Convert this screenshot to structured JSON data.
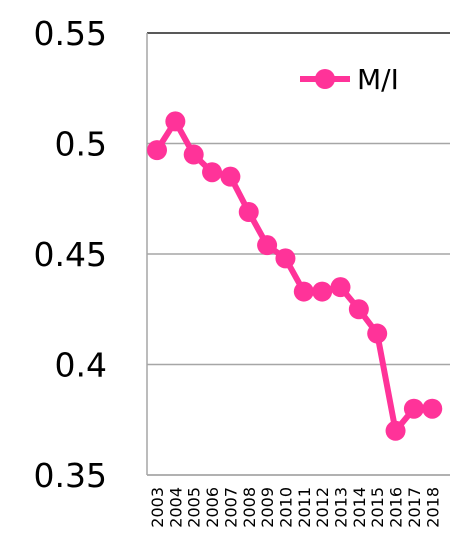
{
  "chart_data": {
    "type": "line",
    "x": [
      "2003",
      "2004",
      "2005",
      "2006",
      "2007",
      "2008",
      "2009",
      "2010",
      "2011",
      "2012",
      "2013",
      "2014",
      "2015",
      "2016",
      "2017",
      "2018"
    ],
    "series": [
      {
        "name": "M/I",
        "color": "#ff3399",
        "values": [
          0.497,
          0.51,
          0.495,
          0.487,
          0.485,
          0.469,
          0.454,
          0.448,
          0.433,
          0.433,
          0.435,
          0.425,
          0.414,
          0.37,
          0.38,
          0.38
        ]
      }
    ],
    "y_ticks": [
      "0.55",
      "0.5",
      "0.45",
      "0.4",
      "0.35"
    ],
    "ylim": [
      0.35,
      0.55
    ],
    "grid": true,
    "legend_position": "top-right",
    "title": "",
    "xlabel": "",
    "ylabel": ""
  }
}
